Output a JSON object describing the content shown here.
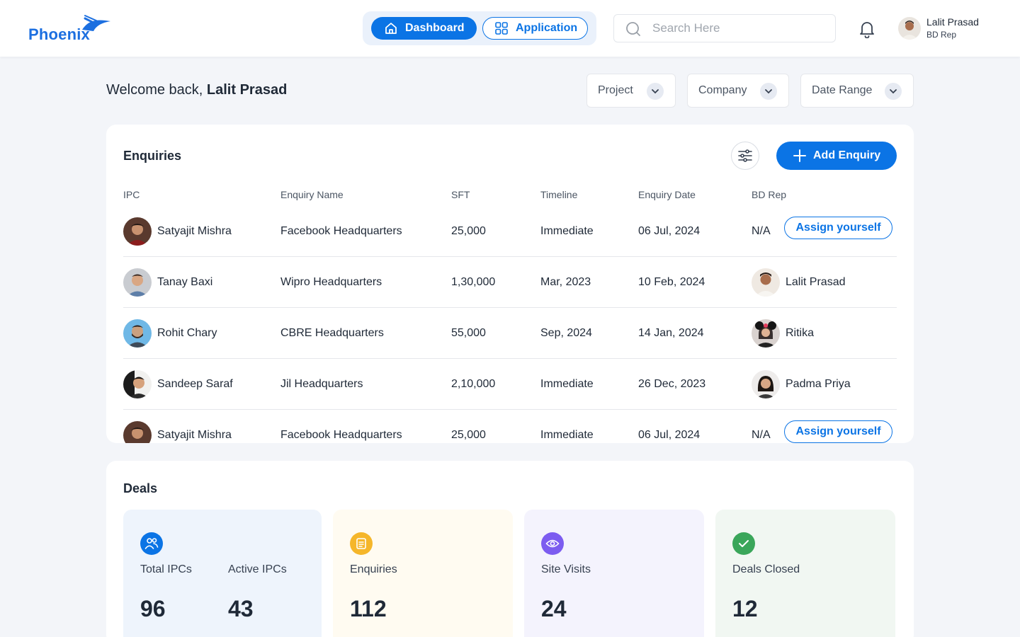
{
  "app": {
    "name": "Phoenix"
  },
  "nav": {
    "dashboard": "Dashboard",
    "application": "Application"
  },
  "search": {
    "placeholder": "Search Here"
  },
  "user": {
    "name": "Lalit Prasad",
    "role": "BD Rep"
  },
  "welcome": {
    "prefix": "Welcome back, ",
    "name": "Lalit Prasad"
  },
  "filters": {
    "project": "Project",
    "company": "Company",
    "date_range": "Date Range"
  },
  "enquiries": {
    "title": "Enquiries",
    "add_label": "Add Enquiry",
    "assign_label": "Assign yourself",
    "columns": [
      "IPC",
      "Enquiry Name",
      "SFT",
      "Timeline",
      "Enquiry Date",
      "BD Rep"
    ],
    "rows": [
      {
        "ipc": "Satyajit Mishra",
        "name": "Facebook Headquarters",
        "sft": "25,000",
        "timeline": "Immediate",
        "date": "06 Jul, 2024",
        "rep": "N/A"
      },
      {
        "ipc": "Tanay Baxi",
        "name": "Wipro Headquarters",
        "sft": "1,30,000",
        "timeline": "Mar, 2023",
        "date": "10 Feb, 2024",
        "rep": "Lalit Prasad"
      },
      {
        "ipc": "Rohit Chary",
        "name": "CBRE Headquarters",
        "sft": "55,000",
        "timeline": "Sep, 2024",
        "date": "14 Jan, 2024",
        "rep": "Ritika"
      },
      {
        "ipc": "Sandeep Saraf",
        "name": "Jil Headquarters",
        "sft": "2,10,000",
        "timeline": "Immediate",
        "date": "26 Dec, 2023",
        "rep": "Padma Priya"
      },
      {
        "ipc": "Satyajit Mishra",
        "name": "Facebook Headquarters",
        "sft": "25,000",
        "timeline": "Immediate",
        "date": "06 Jul, 2024",
        "rep": "N/A"
      }
    ]
  },
  "deals": {
    "title": "Deals",
    "total_ipcs": {
      "label": "Total IPCs",
      "value": "96"
    },
    "active_ipcs": {
      "label": "Active IPCs",
      "value": "43"
    },
    "enquiries": {
      "label": "Enquiries",
      "value": "112"
    },
    "site_visits": {
      "label": "Site Visits",
      "value": "24"
    },
    "deals_closed": {
      "label": "Deals Closed",
      "value": "12"
    }
  },
  "colors": {
    "primary": "#0b74e5",
    "enquiries_icon": "#f5b62a",
    "site_visits_icon": "#7c5cf0",
    "deals_closed_icon": "#3aa65a"
  }
}
